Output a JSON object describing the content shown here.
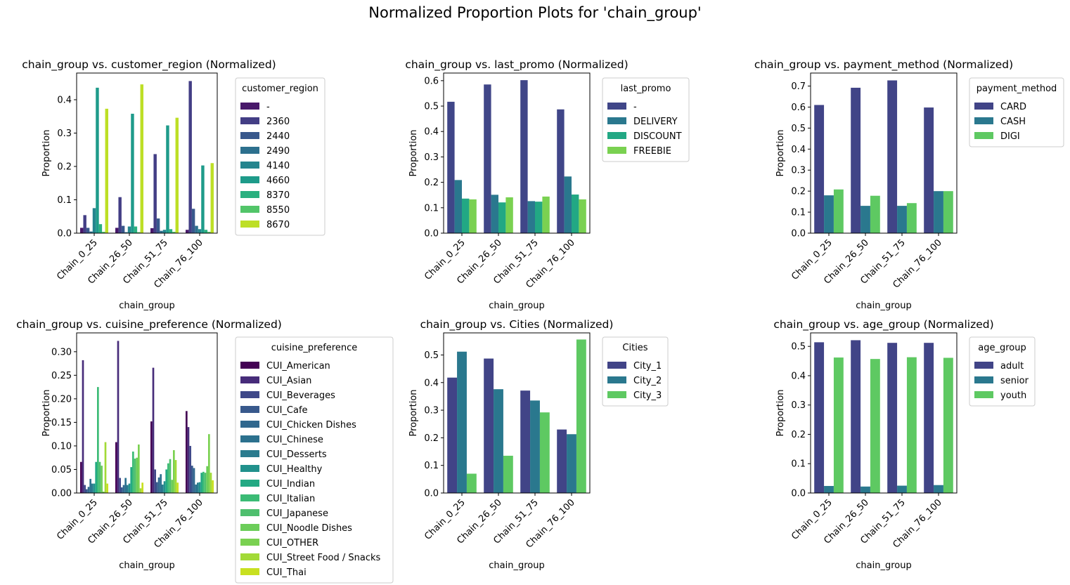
{
  "figure": {
    "title": "Normalized Proportion Plots for 'chain_group'"
  },
  "chart_data": [
    {
      "type": "bar",
      "title": "chain_group vs. customer_region (Normalized)",
      "xlabel": "chain_group",
      "ylabel": "Proportion",
      "categories": [
        "Chain_0_25",
        "Chain_26_50",
        "Chain_51_75",
        "Chain_76_100"
      ],
      "ylim": [
        0,
        0.48
      ],
      "yticks": [
        0.0,
        0.1,
        0.2,
        0.3,
        0.4
      ],
      "ytick_labels": [
        "0.0",
        "0.1",
        "0.2",
        "0.3",
        "0.4"
      ],
      "legend": {
        "title": "customer_region",
        "placement": "outside-right"
      },
      "series": [
        {
          "name": "-",
          "color": "#48186a",
          "values": [
            0.016,
            0.016,
            0.015,
            0.01
          ]
        },
        {
          "name": "2360",
          "color": "#433e85",
          "values": [
            0.054,
            0.108,
            0.237,
            0.456
          ]
        },
        {
          "name": "2440",
          "color": "#38588c",
          "values": [
            0.016,
            0.022,
            0.044,
            0.073
          ]
        },
        {
          "name": "2490",
          "color": "#2d708e",
          "values": [
            0.005,
            0.003,
            0.007,
            0.022
          ]
        },
        {
          "name": "4140",
          "color": "#25858e",
          "values": [
            0.075,
            0.02,
            0.01,
            0.012
          ]
        },
        {
          "name": "4660",
          "color": "#1e9b8a",
          "values": [
            0.436,
            0.358,
            0.323,
            0.203
          ]
        },
        {
          "name": "8370",
          "color": "#2ab07f",
          "values": [
            0.027,
            0.02,
            0.012,
            0.01
          ]
        },
        {
          "name": "8550",
          "color": "#52c569",
          "values": [
            0.004,
            0.003,
            0.004,
            0.004
          ]
        },
        {
          "name": "8670",
          "color": "#bddf26",
          "values": [
            0.373,
            0.446,
            0.346,
            0.21
          ]
        }
      ]
    },
    {
      "type": "bar",
      "title": "chain_group vs. last_promo (Normalized)",
      "xlabel": "chain_group",
      "ylabel": "Proportion",
      "categories": [
        "Chain_0_25",
        "Chain_26_50",
        "Chain_51_75",
        "Chain_76_100"
      ],
      "ylim": [
        0,
        0.63
      ],
      "yticks": [
        0.0,
        0.1,
        0.2,
        0.3,
        0.4,
        0.5,
        0.6
      ],
      "ytick_labels": [
        "0.0",
        "0.1",
        "0.2",
        "0.3",
        "0.4",
        "0.5",
        "0.6"
      ],
      "legend": {
        "title": "last_promo",
        "placement": "outside-right"
      },
      "series": [
        {
          "name": "-",
          "color": "#404688",
          "values": [
            0.517,
            0.585,
            0.602,
            0.487
          ]
        },
        {
          "name": "DELIVERY",
          "color": "#2a788e",
          "values": [
            0.209,
            0.151,
            0.126,
            0.223
          ]
        },
        {
          "name": "DISCOUNT",
          "color": "#22a884",
          "values": [
            0.136,
            0.121,
            0.124,
            0.152
          ]
        },
        {
          "name": "FREEBIE",
          "color": "#7ad151",
          "values": [
            0.133,
            0.141,
            0.144,
            0.133
          ]
        }
      ]
    },
    {
      "type": "bar",
      "title": "chain_group vs. payment_method (Normalized)",
      "xlabel": "chain_group",
      "ylabel": "Proportion",
      "categories": [
        "Chain_0_25",
        "Chain_26_50",
        "Chain_51_75",
        "Chain_76_100"
      ],
      "ylim": [
        0,
        0.762
      ],
      "yticks": [
        0.0,
        0.1,
        0.2,
        0.3,
        0.4,
        0.5,
        0.6,
        0.7
      ],
      "ytick_labels": [
        "0.0",
        "0.1",
        "0.2",
        "0.3",
        "0.4",
        "0.5",
        "0.6",
        "0.7"
      ],
      "legend": {
        "title": "payment_method",
        "placement": "outside-right"
      },
      "series": [
        {
          "name": "CARD",
          "color": "#414487",
          "values": [
            0.61,
            0.692,
            0.727,
            0.598
          ]
        },
        {
          "name": "CASH",
          "color": "#2a788e",
          "values": [
            0.18,
            0.13,
            0.13,
            0.2
          ]
        },
        {
          "name": "DIGI",
          "color": "#5ec962",
          "values": [
            0.208,
            0.178,
            0.143,
            0.2
          ]
        }
      ]
    },
    {
      "type": "bar",
      "title": "chain_group vs. cuisine_preference (Normalized)",
      "xlabel": "chain_group",
      "ylabel": "Proportion",
      "categories": [
        "Chain_0_25",
        "Chain_26_50",
        "Chain_51_75",
        "Chain_76_100"
      ],
      "ylim": [
        0,
        0.34
      ],
      "yticks": [
        0.0,
        0.05,
        0.1,
        0.15,
        0.2,
        0.25,
        0.3
      ],
      "ytick_labels": [
        "0.00",
        "0.05",
        "0.10",
        "0.15",
        "0.20",
        "0.25",
        "0.30"
      ],
      "legend": {
        "title": "cuisine_preference",
        "placement": "outside-right"
      },
      "series": [
        {
          "name": "CUI_American",
          "color": "#440154",
          "values": [
            0.066,
            0.108,
            0.152,
            0.174
          ]
        },
        {
          "name": "CUI_Asian",
          "color": "#472c7a",
          "values": [
            0.282,
            0.323,
            0.266,
            0.14
          ]
        },
        {
          "name": "CUI_Beverages",
          "color": "#3f4889",
          "values": [
            0.017,
            0.032,
            0.05,
            0.1
          ]
        },
        {
          "name": "CUI_Cafe",
          "color": "#38598c",
          "values": [
            0.008,
            0.012,
            0.023,
            0.058
          ]
        },
        {
          "name": "CUI_Chicken Dishes",
          "color": "#31688e",
          "values": [
            0.013,
            0.017,
            0.033,
            0.053
          ]
        },
        {
          "name": "CUI_Chinese",
          "color": "#2c718e",
          "values": [
            0.03,
            0.032,
            0.04,
            0.018
          ]
        },
        {
          "name": "CUI_Desserts",
          "color": "#2a7b8e",
          "values": [
            0.02,
            0.017,
            0.018,
            0.022
          ]
        },
        {
          "name": "CUI_Healthy",
          "color": "#21918c",
          "values": [
            0.02,
            0.02,
            0.025,
            0.023
          ]
        },
        {
          "name": "CUI_Indian",
          "color": "#23a983",
          "values": [
            0.066,
            0.055,
            0.05,
            0.043
          ]
        },
        {
          "name": "CUI_Italian",
          "color": "#3bbb75",
          "values": [
            0.225,
            0.088,
            0.063,
            0.045
          ]
        },
        {
          "name": "CUI_Japanese",
          "color": "#4fbf6e",
          "values": [
            0.066,
            0.073,
            0.072,
            0.043
          ]
        },
        {
          "name": "CUI_Noodle Dishes",
          "color": "#6ccd5a",
          "values": [
            0.058,
            0.075,
            0.028,
            0.057
          ]
        },
        {
          "name": "CUI_OTHER",
          "color": "#7ad151",
          "values": [
            0.003,
            0.103,
            0.091,
            0.125
          ]
        },
        {
          "name": "CUI_Street Food / Snacks",
          "color": "#a2da37",
          "values": [
            0.108,
            0.01,
            0.07,
            0.043
          ]
        },
        {
          "name": "CUI_Thai",
          "color": "#c8e020",
          "values": [
            0.02,
            0.022,
            0.022,
            0.027
          ]
        }
      ]
    },
    {
      "type": "bar",
      "title": "chain_group vs. Cities (Normalized)",
      "xlabel": "chain_group",
      "ylabel": "Proportion",
      "categories": [
        "Chain_0_25",
        "Chain_26_50",
        "Chain_51_75",
        "Chain_76_100"
      ],
      "ylim": [
        0,
        0.58
      ],
      "yticks": [
        0.0,
        0.1,
        0.2,
        0.3,
        0.4,
        0.5
      ],
      "ytick_labels": [
        "0.0",
        "0.1",
        "0.2",
        "0.3",
        "0.4",
        "0.5"
      ],
      "legend": {
        "title": "Cities",
        "placement": "outside-right"
      },
      "series": [
        {
          "name": "City_1",
          "color": "#414487",
          "values": [
            0.418,
            0.487,
            0.371,
            0.23
          ]
        },
        {
          "name": "City_2",
          "color": "#2a788e",
          "values": [
            0.512,
            0.376,
            0.335,
            0.213
          ]
        },
        {
          "name": "City_3",
          "color": "#5ec962",
          "values": [
            0.07,
            0.135,
            0.292,
            0.556
          ]
        }
      ]
    },
    {
      "type": "bar",
      "title": "chain_group vs. age_group (Normalized)",
      "xlabel": "chain_group",
      "ylabel": "Proportion",
      "categories": [
        "Chain_0_25",
        "Chain_26_50",
        "Chain_51_75",
        "Chain_76_100"
      ],
      "ylim": [
        0,
        0.546
      ],
      "yticks": [
        0.0,
        0.1,
        0.2,
        0.3,
        0.4,
        0.5
      ],
      "ytick_labels": [
        "0.0",
        "0.1",
        "0.2",
        "0.3",
        "0.4",
        "0.5"
      ],
      "legend": {
        "title": "age_group",
        "placement": "outside-right"
      },
      "series": [
        {
          "name": "adult",
          "color": "#414487",
          "values": [
            0.514,
            0.521,
            0.512,
            0.512
          ]
        },
        {
          "name": "senior",
          "color": "#2a788e",
          "values": [
            0.024,
            0.022,
            0.025,
            0.027
          ]
        },
        {
          "name": "youth",
          "color": "#5ec962",
          "values": [
            0.462,
            0.457,
            0.463,
            0.461
          ]
        }
      ]
    }
  ]
}
